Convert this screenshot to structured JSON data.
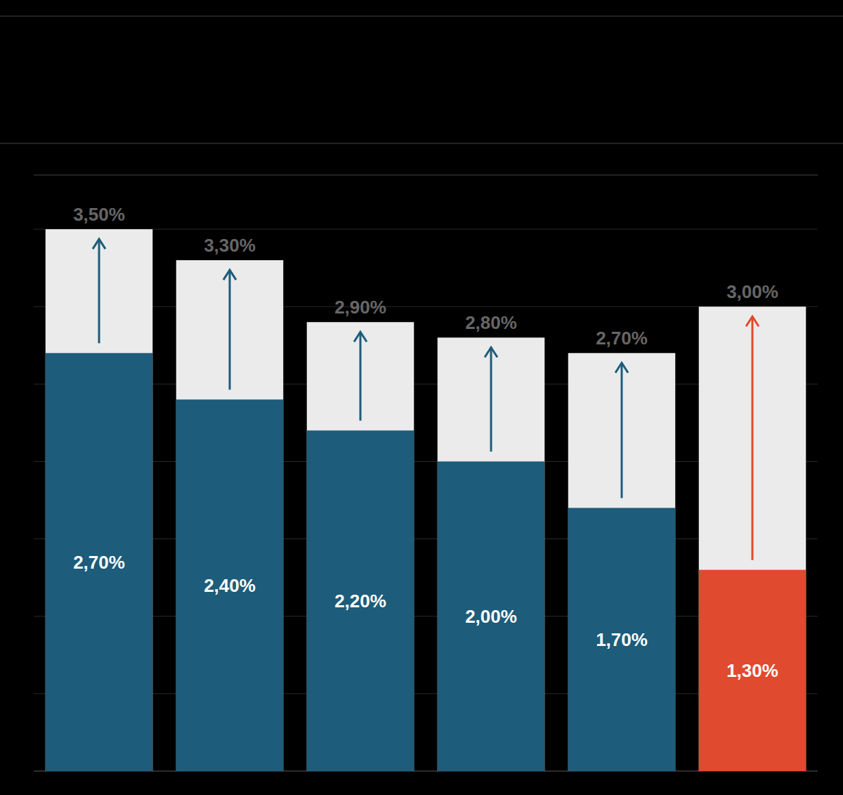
{
  "chart_data": {
    "type": "bar",
    "categories": [
      null,
      null,
      null,
      null,
      null,
      null
    ],
    "series": [
      {
        "colors": [
          "#1d5c7a",
          "#1d5c7a",
          "#1d5c7a",
          "#1d5c7a",
          "#1d5c7a",
          "#e04a2f"
        ],
        "values": [
          2.7,
          2.4,
          2.2,
          2.0,
          1.7,
          1.3
        ],
        "value_labels": [
          "2,70%",
          "2,40%",
          "2,20%",
          "2,00%",
          "1,70%",
          "1,30%"
        ]
      },
      {
        "color": "#ebebeb",
        "values": [
          3.5,
          3.3,
          2.9,
          2.8,
          2.7,
          3.0
        ],
        "value_labels": [
          "3,50%",
          "3,30%",
          "2,90%",
          "2,80%",
          "2,70%",
          "3,00%"
        ]
      }
    ],
    "ylim": [
      0,
      3.85
    ],
    "yticks": [
      0,
      0.5,
      1,
      1.5,
      2,
      2.5,
      3,
      3.5
    ],
    "grid": true,
    "tick_labels": false,
    "data_labels": true
  }
}
